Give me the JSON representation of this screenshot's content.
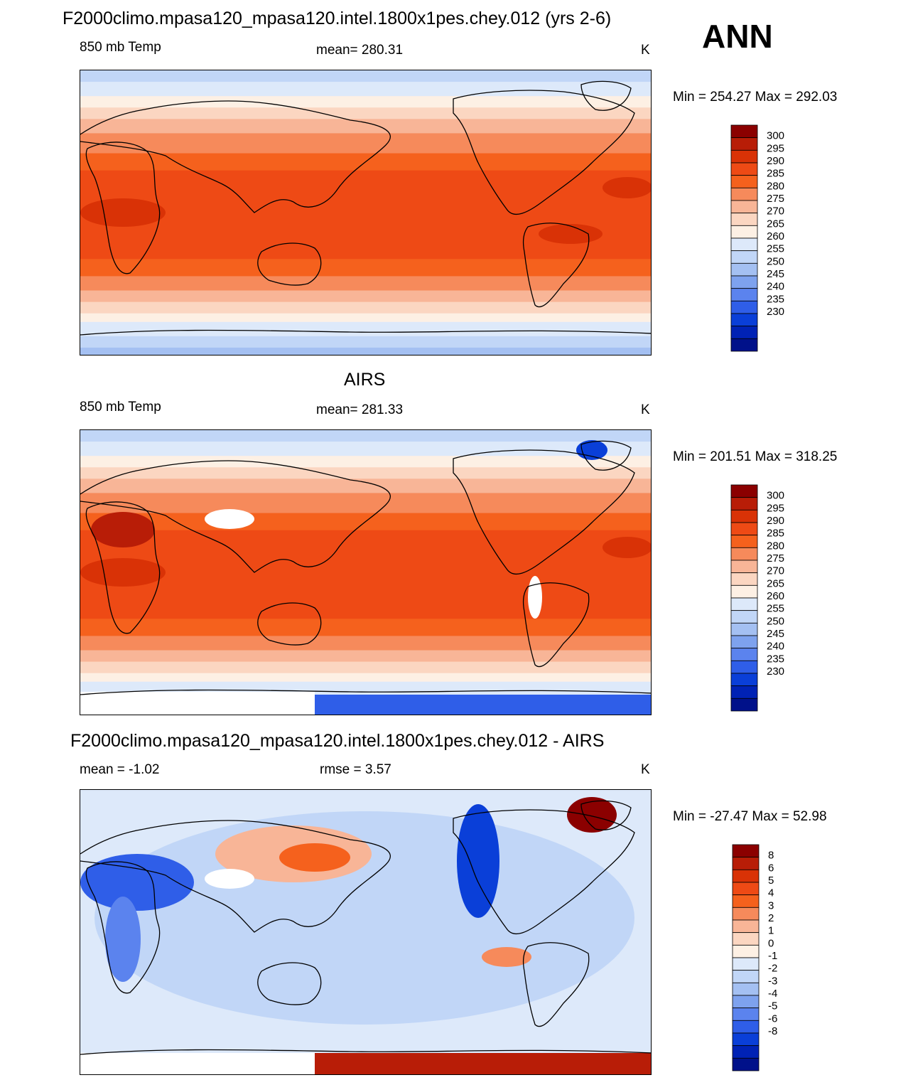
{
  "season": "ANN",
  "panels": [
    {
      "title": "F2000climo.mpasa120_mpasa120.intel.1800x1pes.chey.012 (yrs 2-6)",
      "left_label": "850 mb Temp",
      "center_label": "mean= 280.31",
      "units": "K",
      "minmax": "Min = 254.27 Max = 292.03"
    },
    {
      "title": "AIRS",
      "left_label": "850 mb Temp",
      "center_label": "mean= 281.33",
      "units": "K",
      "minmax": "Min = 201.51 Max = 318.25"
    },
    {
      "title": "F2000climo.mpasa120_mpasa120.intel.1800x1pes.chey.012 - AIRS",
      "left_label": "mean =  -1.02",
      "center_label": "rmse =   3.57",
      "units": "K",
      "minmax": "Min = -27.47 Max =  52.98"
    }
  ],
  "chart_data": [
    {
      "type": "heatmap",
      "title": "F2000climo.mpasa120_mpasa120.intel.1800x1pes.chey.012 (yrs 2-6)",
      "variable": "850 mb Temp",
      "units": "K",
      "mean": 280.31,
      "min": 254.27,
      "max": 292.03,
      "colorbar_levels": [
        "300",
        "295",
        "290",
        "285",
        "280",
        "275",
        "270",
        "265",
        "260",
        "255",
        "250",
        "245",
        "240",
        "235",
        "230"
      ],
      "colorbar_colors": [
        "#8b0000",
        "#b81d07",
        "#d93206",
        "#ee4a15",
        "#f5611d",
        "#f68a5b",
        "#f8b597",
        "#fbd6c1",
        "#fdf0e4",
        "#dde9fa",
        "#c1d6f7",
        "#a4c0f2",
        "#7ea2ee",
        "#5b83ee",
        "#2f5ee8",
        "#0a3fd8",
        "#0022b5",
        "#00118a"
      ]
    },
    {
      "type": "heatmap",
      "title": "AIRS",
      "variable": "850 mb Temp",
      "units": "K",
      "mean": 281.33,
      "min": 201.51,
      "max": 318.25,
      "colorbar_levels": [
        "300",
        "295",
        "290",
        "285",
        "280",
        "275",
        "270",
        "265",
        "260",
        "255",
        "250",
        "245",
        "240",
        "235",
        "230"
      ],
      "colorbar_colors": [
        "#8b0000",
        "#b81d07",
        "#d93206",
        "#ee4a15",
        "#f5611d",
        "#f68a5b",
        "#f8b597",
        "#fbd6c1",
        "#fdf0e4",
        "#dde9fa",
        "#c1d6f7",
        "#a4c0f2",
        "#7ea2ee",
        "#5b83ee",
        "#2f5ee8",
        "#0a3fd8",
        "#0022b5",
        "#00118a"
      ]
    },
    {
      "type": "heatmap",
      "title": "F2000climo.mpasa120_mpasa120.intel.1800x1pes.chey.012 - AIRS",
      "units": "K",
      "mean": -1.02,
      "rmse": 3.57,
      "min": -27.47,
      "max": 52.98,
      "colorbar_levels": [
        "8",
        "6",
        "5",
        "4",
        "3",
        "2",
        "1",
        "0",
        "-1",
        "-2",
        "-3",
        "-4",
        "-5",
        "-6",
        "-8"
      ],
      "colorbar_colors": [
        "#8b0000",
        "#b81d07",
        "#d93206",
        "#ee4a15",
        "#f5611d",
        "#f68a5b",
        "#f8b597",
        "#fbd6c1",
        "#fdf0e4",
        "#dde9fa",
        "#c1d6f7",
        "#a4c0f2",
        "#7ea2ee",
        "#5b83ee",
        "#2f5ee8",
        "#0a3fd8",
        "#0022b5",
        "#00118a"
      ]
    }
  ]
}
